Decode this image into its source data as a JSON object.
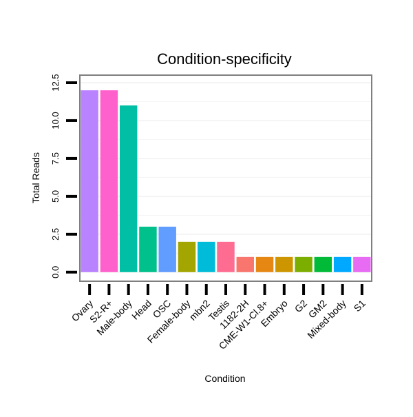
{
  "chart_data": {
    "type": "bar",
    "title": "Condition-specificity",
    "xlabel": "Condition",
    "ylabel": "Total Reads",
    "ylim": [
      -0.6,
      13.0
    ],
    "yticks": [
      0.0,
      2.5,
      5.0,
      7.5,
      10.0,
      12.5
    ],
    "ytick_labels": [
      "0.0",
      "2.5",
      "5.0",
      "7.5",
      "10.0",
      "12.5"
    ],
    "grid": true,
    "legend": "none",
    "categories": [
      "Ovary",
      "S2-R+",
      "Male-body",
      "Head",
      "OSC",
      "Female-body",
      "mbn2",
      "Testis",
      "1182-2H",
      "CME-W1-Cl.8+",
      "Embryo",
      "G2",
      "GM2",
      "Mixed-body",
      "S1"
    ],
    "values": [
      12,
      12,
      11,
      3,
      3,
      2,
      2,
      2,
      1,
      1,
      1,
      1,
      1,
      1,
      1
    ],
    "colors": [
      "#B983FF",
      "#FF61CC",
      "#00BFA5",
      "#00C08B",
      "#619CFF",
      "#A3A500",
      "#00BCD8",
      "#FF6C91",
      "#F8766D",
      "#E68613",
      "#CD9600",
      "#7CAE00",
      "#00BA38",
      "#00A9FF",
      "#E76BF3"
    ]
  }
}
